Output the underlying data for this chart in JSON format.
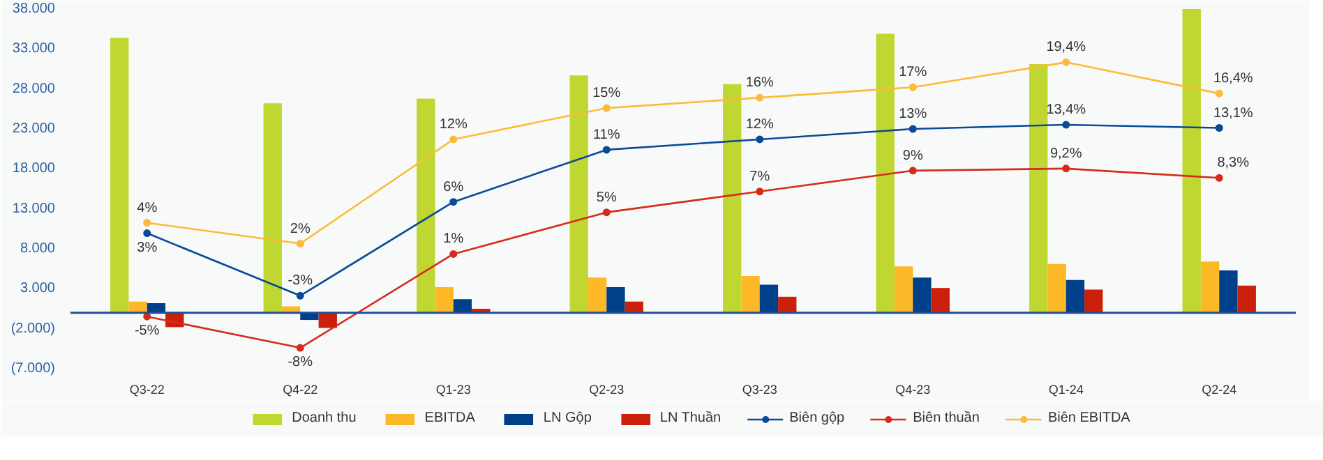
{
  "chart_data": {
    "type": "bar",
    "categories": [
      "Q3-22",
      "Q4-22",
      "Q1-23",
      "Q2-23",
      "Q3-23",
      "Q4-23",
      "Q1-24",
      "Q2-24"
    ],
    "ylim": [
      -7000,
      38000
    ],
    "yticks": [
      {
        "value": -7000,
        "label": "(7.000)"
      },
      {
        "value": -2000,
        "label": "(2.000)"
      },
      {
        "value": 3000,
        "label": "3.000"
      },
      {
        "value": 8000,
        "label": "8.000"
      },
      {
        "value": 13000,
        "label": "13.000"
      },
      {
        "value": 18000,
        "label": "18.000"
      },
      {
        "value": 23000,
        "label": "23.000"
      },
      {
        "value": 28000,
        "label": "28.000"
      },
      {
        "value": 33000,
        "label": "33.000"
      },
      {
        "value": 38000,
        "label": "38.000"
      }
    ],
    "y2lim": [
      -10,
      24.5
    ],
    "ref_lines": [
      {
        "axis": "y",
        "value": 0,
        "color": "#1f4f9a"
      }
    ],
    "grid": false,
    "legend": "bottom",
    "marker": "circle",
    "line_style": "solid",
    "series": [
      {
        "name": "Doanh thu",
        "color": "#bfd730",
        "values": [
          34400,
          26200,
          26800,
          29700,
          28600,
          34900,
          31100,
          38000
        ]
      },
      {
        "name": "EBITDA",
        "color": "#fdb827",
        "values": [
          1400,
          800,
          3200,
          4400,
          4600,
          5800,
          6100,
          6400
        ]
      },
      {
        "name": "LN Gộp",
        "color": "#003f8a",
        "values": [
          1200,
          -900,
          1700,
          3200,
          3500,
          4400,
          4100,
          5300
        ]
      },
      {
        "name": "LN Thuần",
        "color": "#cc1f0c",
        "values": [
          -1800,
          -1900,
          500,
          1400,
          2000,
          3100,
          2900,
          3400
        ]
      },
      {
        "name": "Biên gộp",
        "type": "line",
        "axis": "y2",
        "color": "#0b4a96",
        "values": [
          3,
          -3,
          6,
          11,
          12,
          13,
          13.4,
          13.1
        ],
        "value_labels": [
          "3%",
          "-3%",
          "6%",
          "11%",
          "12%",
          "13%",
          "13,4%",
          "13,1%"
        ]
      },
      {
        "name": "Biên thuần",
        "type": "line",
        "axis": "y2",
        "color": "#d62b1a",
        "values": [
          -5,
          -8,
          1,
          5,
          7,
          9,
          9.2,
          8.3
        ],
        "value_labels": [
          "-5%",
          "-8%",
          "1%",
          "5%",
          "7%",
          "9%",
          "9,2%",
          "8,3%"
        ]
      },
      {
        "name": "Biên EBITDA",
        "type": "line",
        "axis": "y2",
        "color": "#fbbb3a",
        "values": [
          4,
          2,
          12,
          15,
          16,
          17,
          19.4,
          16.4
        ],
        "value_labels": [
          "4%",
          "2%",
          "12%",
          "15%",
          "16%",
          "17%",
          "19,4%",
          "16,4%"
        ]
      }
    ]
  }
}
